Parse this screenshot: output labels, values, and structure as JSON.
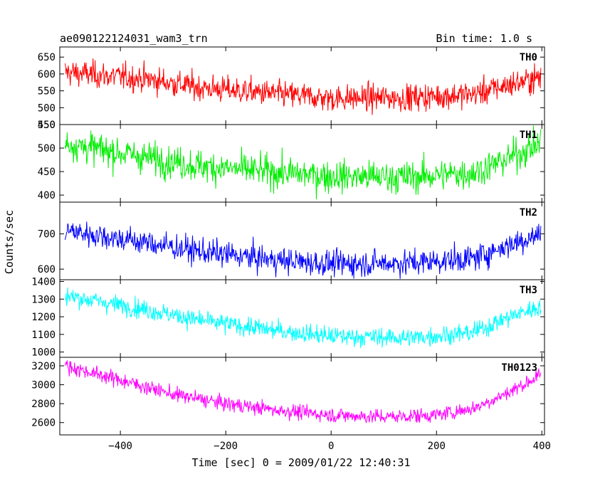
{
  "chart_data": {
    "type": "line",
    "title": "ae090122124031_wam3_trn",
    "subtitle": "Bin time: 1.0 s",
    "xlabel": "Time [sec] 0 = 2009/01/22 12:40:31",
    "ylabel": "Counts/sec",
    "xlim": [
      -515,
      405
    ],
    "x_ticks": [
      -400,
      -200,
      0,
      200,
      400
    ],
    "x_tick_labels": [
      "−400",
      "−200",
      "0",
      "200",
      "400"
    ],
    "x_data_range": [
      -505,
      398
    ],
    "bin_time": 1.0,
    "panels": [
      {
        "name": "TH0",
        "color": "#ff0000",
        "ylim": [
          450,
          680
        ],
        "yticks": [
          450,
          500,
          550,
          600,
          650
        ],
        "noise": 28,
        "trend": [
          [
            -505,
            605
          ],
          [
            -350,
            585
          ],
          [
            -250,
            560
          ],
          [
            -100,
            540
          ],
          [
            0,
            528
          ],
          [
            150,
            530
          ],
          [
            270,
            540
          ],
          [
            330,
            565
          ],
          [
            398,
            590
          ]
        ]
      },
      {
        "name": "TH1",
        "color": "#00ee00",
        "ylim": [
          385,
          550
        ],
        "yticks": [
          400,
          450,
          500,
          550
        ],
        "noise": 24,
        "trend": [
          [
            -505,
            510
          ],
          [
            -350,
            480
          ],
          [
            -250,
            462
          ],
          [
            -100,
            448
          ],
          [
            0,
            440
          ],
          [
            150,
            438
          ],
          [
            270,
            448
          ],
          [
            330,
            475
          ],
          [
            398,
            510
          ]
        ]
      },
      {
        "name": "TH2",
        "color": "#0000ff",
        "ylim": [
          570,
          790
        ],
        "yticks": [
          600,
          700
        ],
        "noise": 26,
        "trend": [
          [
            -505,
            710
          ],
          [
            -350,
            675
          ],
          [
            -250,
            650
          ],
          [
            -100,
            625
          ],
          [
            0,
            615
          ],
          [
            150,
            618
          ],
          [
            270,
            630
          ],
          [
            330,
            665
          ],
          [
            398,
            700
          ]
        ]
      },
      {
        "name": "TH3",
        "color": "#00ffff",
        "ylim": [
          970,
          1410
        ],
        "yticks": [
          1000,
          1100,
          1200,
          1300,
          1400
        ],
        "noise": 38,
        "trend": [
          [
            -505,
            1320
          ],
          [
            -350,
            1240
          ],
          [
            -250,
            1180
          ],
          [
            -100,
            1120
          ],
          [
            0,
            1090
          ],
          [
            150,
            1080
          ],
          [
            270,
            1110
          ],
          [
            330,
            1190
          ],
          [
            398,
            1260
          ]
        ]
      },
      {
        "name": "TH0123",
        "color": "#ff00ff",
        "ylim": [
          2470,
          3290
        ],
        "yticks": [
          2600,
          2800,
          3000,
          3200
        ],
        "noise": 55,
        "trend": [
          [
            -505,
            3200
          ],
          [
            -400,
            3050
          ],
          [
            -300,
            2900
          ],
          [
            -200,
            2800
          ],
          [
            -100,
            2730
          ],
          [
            0,
            2680
          ],
          [
            100,
            2660
          ],
          [
            200,
            2680
          ],
          [
            270,
            2750
          ],
          [
            330,
            2900
          ],
          [
            398,
            3100
          ]
        ]
      }
    ],
    "legend": "none",
    "grid": false
  }
}
